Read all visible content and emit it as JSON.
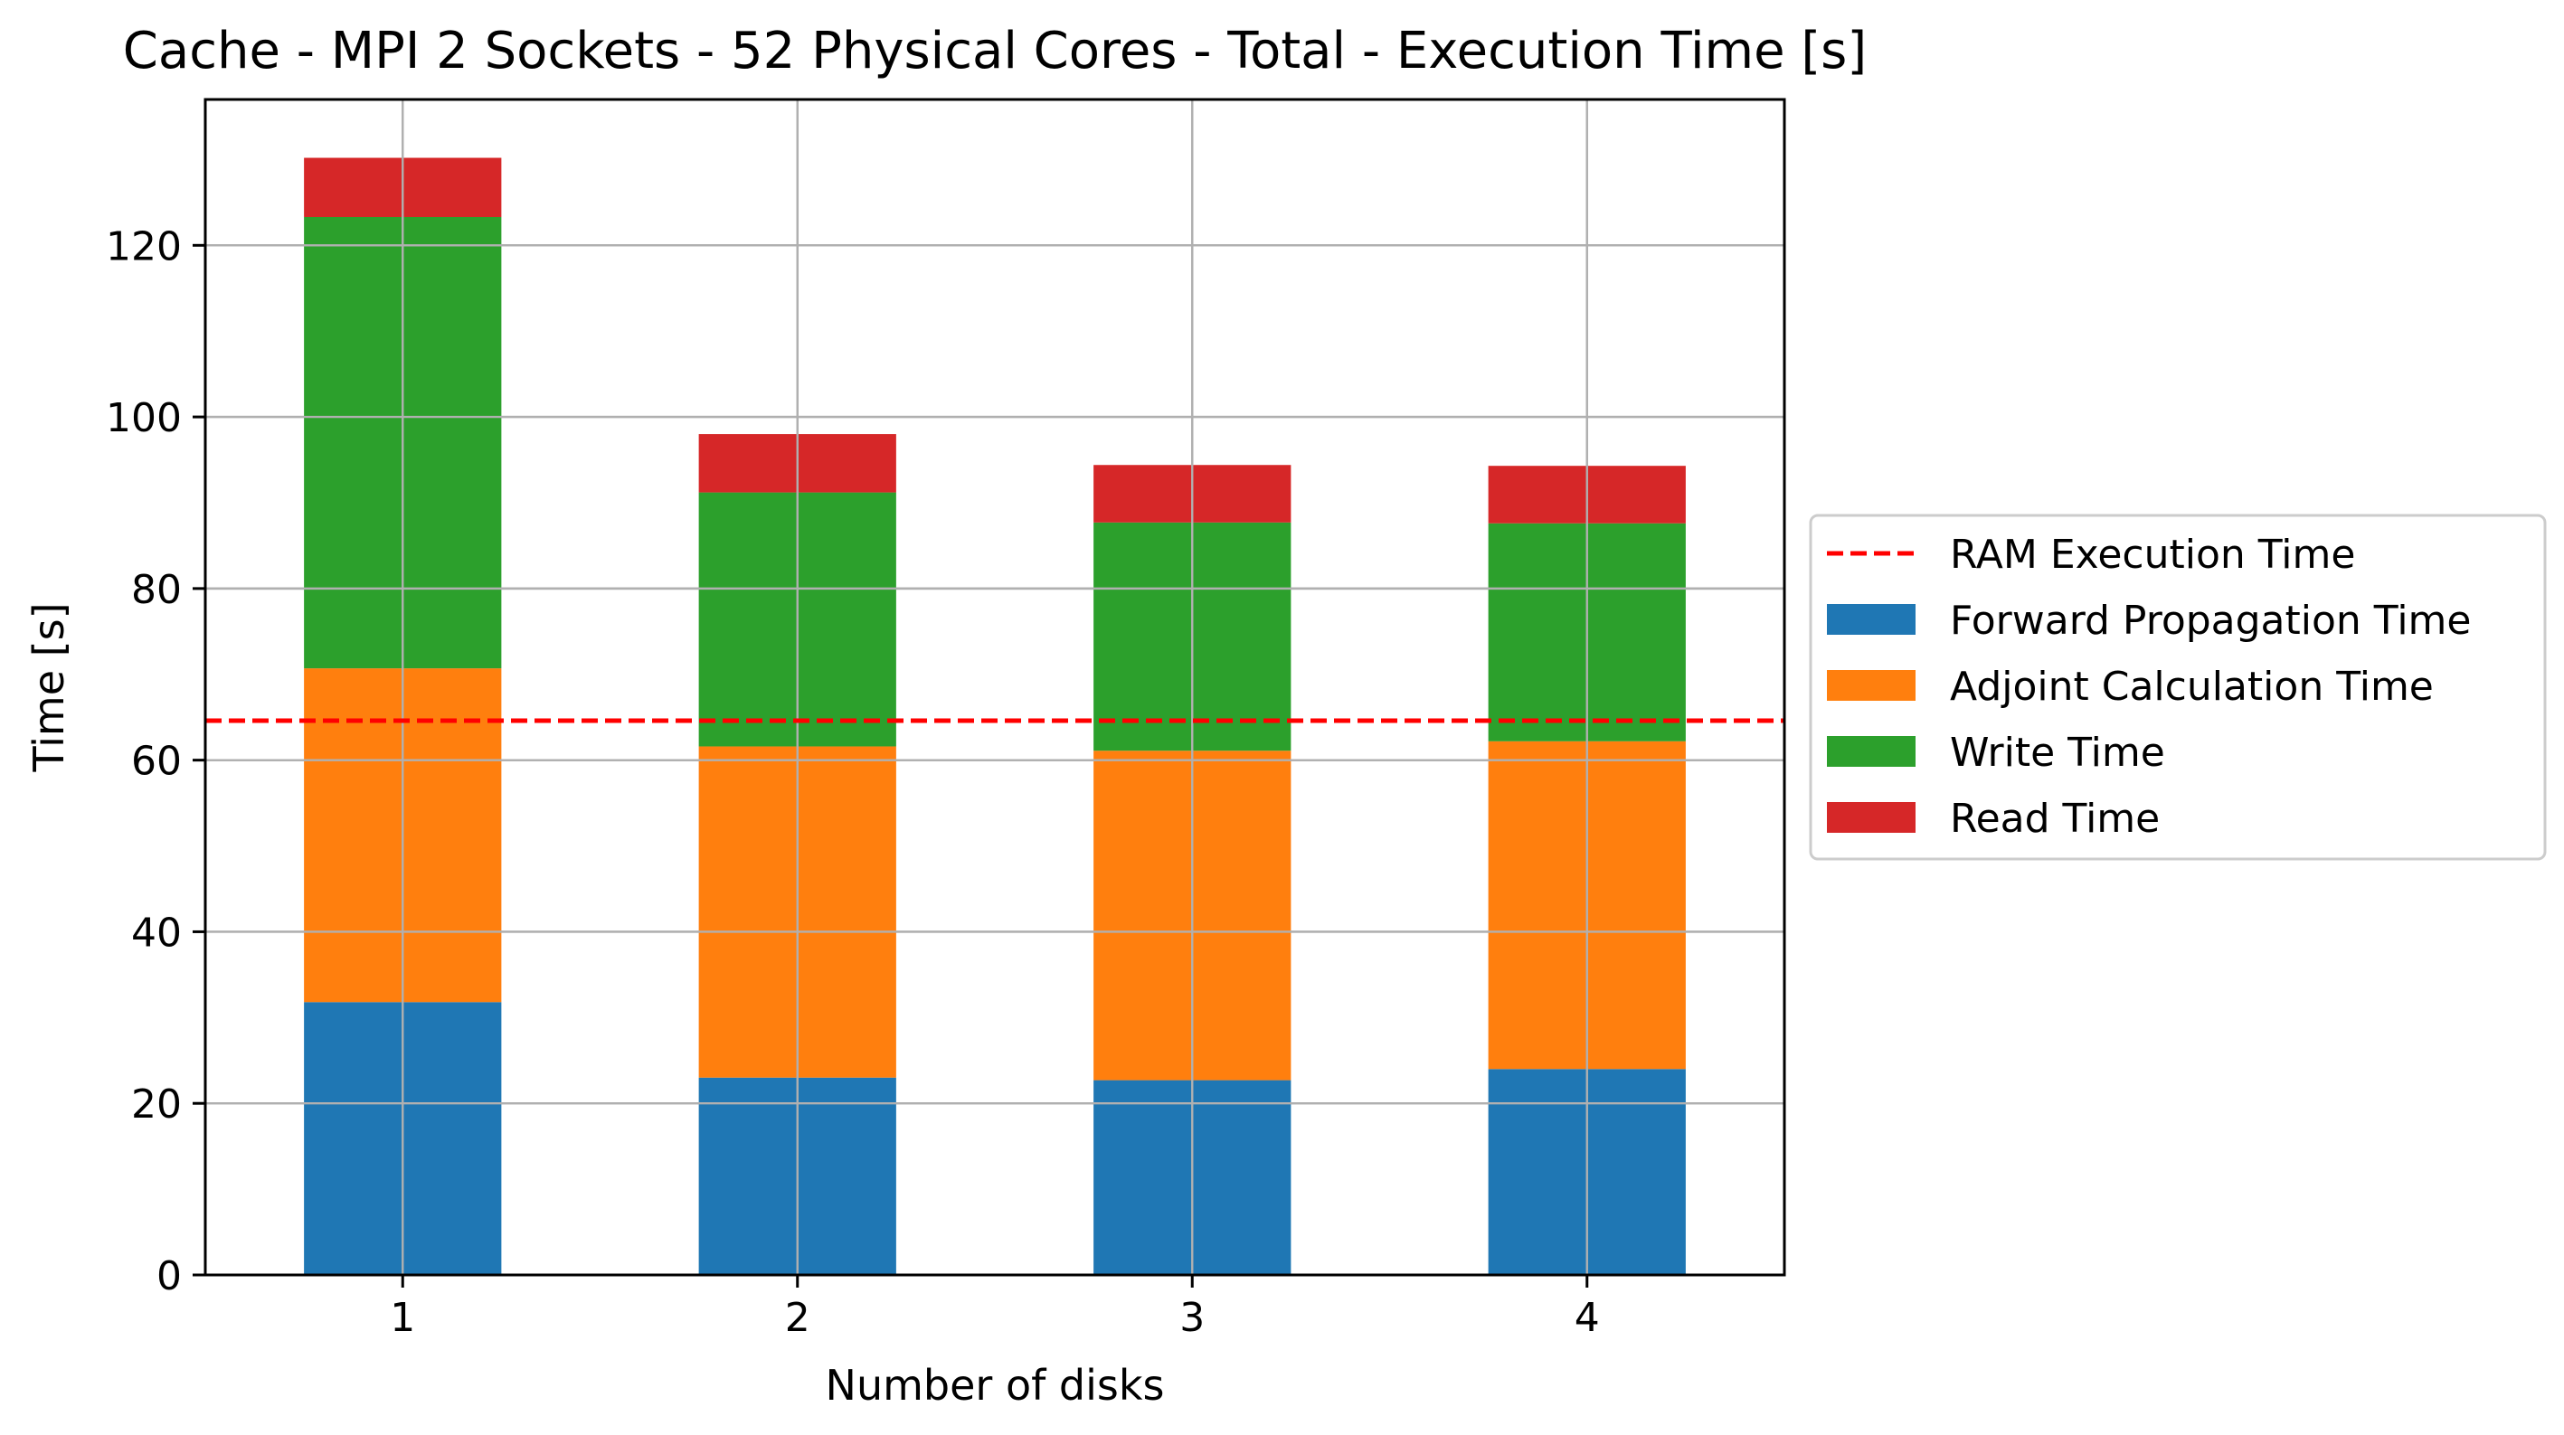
{
  "chart_data": {
    "type": "bar",
    "stacked": true,
    "title": "Cache - MPI 2 Sockets - 52 Physical Cores - Total - Execution Time [s]",
    "xlabel": "Number of disks",
    "ylabel": "Time [s]",
    "categories": [
      "1",
      "2",
      "3",
      "4"
    ],
    "ylim": [
      0,
      137
    ],
    "yticks": [
      0,
      20,
      40,
      60,
      80,
      100,
      120
    ],
    "grid": true,
    "legend_position": "center-right-outside",
    "series": [
      {
        "name": "Forward Propagation Time",
        "color": "#1f77b4",
        "values": [
          31.8,
          23.0,
          22.7,
          24.0
        ]
      },
      {
        "name": "Adjoint Calculation Time",
        "color": "#ff7f0e",
        "values": [
          38.9,
          38.6,
          38.4,
          38.2
        ]
      },
      {
        "name": "Write Time",
        "color": "#2ca02c",
        "values": [
          52.6,
          29.6,
          26.6,
          25.4
        ]
      },
      {
        "name": "Read Time",
        "color": "#d62728",
        "values": [
          6.9,
          6.8,
          6.7,
          6.7
        ]
      }
    ],
    "reference_line": {
      "name": "RAM Execution Time",
      "value": 64.6,
      "color": "#ff0000",
      "style": "dashed"
    }
  }
}
